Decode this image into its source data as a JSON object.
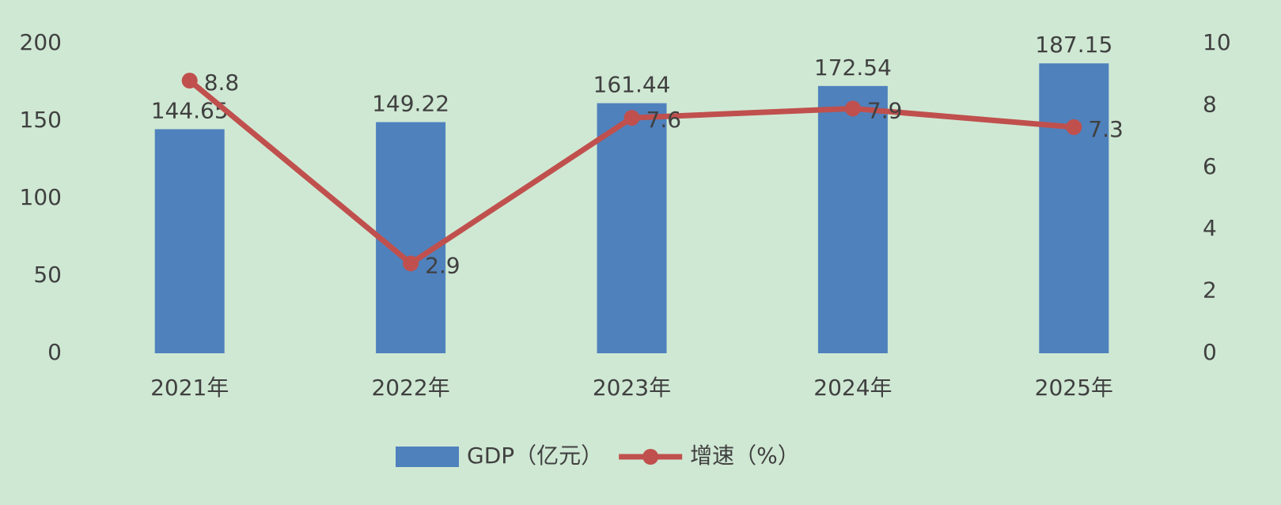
{
  "chart_data": {
    "type": "bar",
    "categories": [
      "2021年",
      "2022年",
      "2023年",
      "2024年",
      "2025年"
    ],
    "series": [
      {
        "name": "GDP（亿元）",
        "type": "bar",
        "color": "#4f81bd",
        "axis": "y",
        "values": [
          144.65,
          149.22,
          161.44,
          172.54,
          187.15
        ]
      },
      {
        "name": "增速（%）",
        "type": "line",
        "color": "#c0504d",
        "axis": "y2",
        "values": [
          8.8,
          2.9,
          7.6,
          7.9,
          7.3
        ]
      }
    ],
    "ylim": [
      0,
      200
    ],
    "yticks": [
      0,
      50,
      100,
      150,
      200
    ],
    "y2lim": [
      0,
      10
    ],
    "y2ticks": [
      0,
      2,
      4,
      6,
      8,
      10
    ],
    "grid": false,
    "legend": "bottom"
  }
}
